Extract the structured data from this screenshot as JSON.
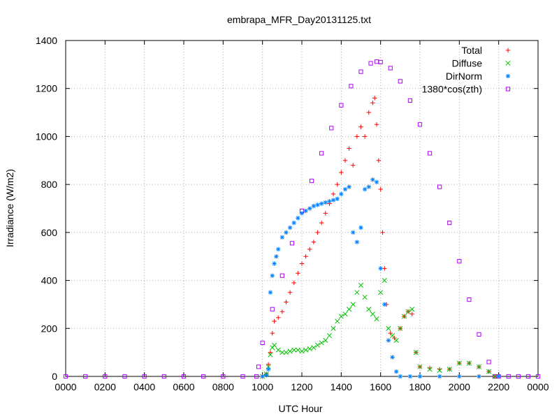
{
  "chart_data": {
    "type": "scatter",
    "title": "embrapa_MFR_Day20131125.txt",
    "xlabel": "UTC Hour",
    "ylabel": "Irradiance (W/m2)",
    "xlim": [
      0,
      2400
    ],
    "ylim": [
      0,
      1400
    ],
    "x_ticks": [
      "0000",
      "0200",
      "0400",
      "0600",
      "0800",
      "1000",
      "1200",
      "1400",
      "1600",
      "1800",
      "2000",
      "2200",
      "0000"
    ],
    "y_ticks": [
      "0",
      "200",
      "400",
      "600",
      "800",
      "1000",
      "1200",
      "1400"
    ],
    "grid": true,
    "legend_position": "top-right",
    "series": [
      {
        "name": "Total",
        "marker": "plus",
        "color": "#ff0000",
        "points": [
          [
            1000,
            0
          ],
          [
            1020,
            10
          ],
          [
            1030,
            50
          ],
          [
            1040,
            100
          ],
          [
            1050,
            180
          ],
          [
            1060,
            230
          ],
          [
            1080,
            245
          ],
          [
            1100,
            270
          ],
          [
            1120,
            310
          ],
          [
            1140,
            350
          ],
          [
            1160,
            390
          ],
          [
            1180,
            430
          ],
          [
            1200,
            470
          ],
          [
            1220,
            500
          ],
          [
            1240,
            530
          ],
          [
            1260,
            560
          ],
          [
            1280,
            600
          ],
          [
            1300,
            640
          ],
          [
            1320,
            680
          ],
          [
            1340,
            720
          ],
          [
            1360,
            760
          ],
          [
            1380,
            800
          ],
          [
            1400,
            850
          ],
          [
            1420,
            900
          ],
          [
            1440,
            950
          ],
          [
            1460,
            880
          ],
          [
            1480,
            1000
          ],
          [
            1500,
            1040
          ],
          [
            1520,
            1000
          ],
          [
            1540,
            1100
          ],
          [
            1560,
            1140
          ],
          [
            1570,
            1160
          ],
          [
            1580,
            1050
          ],
          [
            1590,
            900
          ],
          [
            1600,
            780
          ],
          [
            1610,
            600
          ],
          [
            1620,
            450
          ],
          [
            1630,
            300
          ],
          [
            1650,
            180
          ],
          [
            1670,
            160
          ],
          [
            1700,
            200
          ],
          [
            1720,
            250
          ],
          [
            1740,
            270
          ],
          [
            1760,
            260
          ],
          [
            1780,
            100
          ],
          [
            1800,
            40
          ],
          [
            1850,
            35
          ],
          [
            1900,
            30
          ],
          [
            1950,
            30
          ],
          [
            2000,
            55
          ],
          [
            2050,
            55
          ],
          [
            2100,
            40
          ],
          [
            2150,
            20
          ],
          [
            2180,
            0
          ]
        ]
      },
      {
        "name": "Diffuse",
        "marker": "x",
        "color": "#00c000",
        "points": [
          [
            1000,
            0
          ],
          [
            1020,
            10
          ],
          [
            1030,
            40
          ],
          [
            1040,
            90
          ],
          [
            1050,
            120
          ],
          [
            1060,
            130
          ],
          [
            1080,
            110
          ],
          [
            1100,
            100
          ],
          [
            1120,
            100
          ],
          [
            1140,
            105
          ],
          [
            1160,
            110
          ],
          [
            1180,
            110
          ],
          [
            1200,
            105
          ],
          [
            1220,
            110
          ],
          [
            1240,
            115
          ],
          [
            1260,
            120
          ],
          [
            1280,
            130
          ],
          [
            1300,
            140
          ],
          [
            1320,
            150
          ],
          [
            1340,
            170
          ],
          [
            1360,
            200
          ],
          [
            1380,
            230
          ],
          [
            1400,
            250
          ],
          [
            1420,
            260
          ],
          [
            1440,
            280
          ],
          [
            1460,
            300
          ],
          [
            1480,
            350
          ],
          [
            1500,
            380
          ],
          [
            1520,
            330
          ],
          [
            1540,
            280
          ],
          [
            1560,
            260
          ],
          [
            1580,
            240
          ],
          [
            1600,
            350
          ],
          [
            1620,
            400
          ],
          [
            1640,
            200
          ],
          [
            1660,
            170
          ],
          [
            1680,
            150
          ],
          [
            1700,
            200
          ],
          [
            1720,
            250
          ],
          [
            1740,
            270
          ],
          [
            1760,
            280
          ],
          [
            1780,
            100
          ],
          [
            1800,
            40
          ],
          [
            1850,
            30
          ],
          [
            1900,
            25
          ],
          [
            1950,
            30
          ],
          [
            2000,
            55
          ],
          [
            2050,
            55
          ],
          [
            2100,
            40
          ],
          [
            2150,
            20
          ],
          [
            2180,
            0
          ]
        ]
      },
      {
        "name": "DirNorm",
        "marker": "star",
        "color": "#0080ff",
        "points": [
          [
            1000,
            0
          ],
          [
            1020,
            5
          ],
          [
            1030,
            30
          ],
          [
            1040,
            350
          ],
          [
            1050,
            420
          ],
          [
            1060,
            470
          ],
          [
            1070,
            500
          ],
          [
            1080,
            530
          ],
          [
            1100,
            580
          ],
          [
            1120,
            600
          ],
          [
            1140,
            620
          ],
          [
            1160,
            640
          ],
          [
            1180,
            660
          ],
          [
            1200,
            680
          ],
          [
            1220,
            690
          ],
          [
            1240,
            700
          ],
          [
            1260,
            710
          ],
          [
            1280,
            715
          ],
          [
            1300,
            720
          ],
          [
            1320,
            725
          ],
          [
            1340,
            730
          ],
          [
            1360,
            735
          ],
          [
            1380,
            740
          ],
          [
            1400,
            760
          ],
          [
            1420,
            780
          ],
          [
            1440,
            790
          ],
          [
            1460,
            600
          ],
          [
            1480,
            560
          ],
          [
            1500,
            620
          ],
          [
            1520,
            780
          ],
          [
            1540,
            790
          ],
          [
            1560,
            820
          ],
          [
            1580,
            810
          ],
          [
            1600,
            450
          ],
          [
            1620,
            300
          ],
          [
            1640,
            150
          ],
          [
            1660,
            80
          ],
          [
            1680,
            20
          ],
          [
            1700,
            0
          ],
          [
            1750,
            0
          ],
          [
            1800,
            0
          ],
          [
            1900,
            0
          ],
          [
            2000,
            0
          ],
          [
            2100,
            0
          ],
          [
            2200,
            0
          ]
        ]
      },
      {
        "name": "1380*cos(zth)",
        "marker": "square",
        "color": "#b000ff",
        "points": [
          [
            0,
            0
          ],
          [
            100,
            0
          ],
          [
            200,
            0
          ],
          [
            300,
            0
          ],
          [
            400,
            0
          ],
          [
            500,
            0
          ],
          [
            600,
            0
          ],
          [
            700,
            0
          ],
          [
            800,
            0
          ],
          [
            900,
            0
          ],
          [
            970,
            0
          ],
          [
            980,
            40
          ],
          [
            1000,
            140
          ],
          [
            1050,
            280
          ],
          [
            1100,
            420
          ],
          [
            1150,
            555
          ],
          [
            1200,
            690
          ],
          [
            1250,
            815
          ],
          [
            1300,
            930
          ],
          [
            1350,
            1035
          ],
          [
            1400,
            1130
          ],
          [
            1450,
            1210
          ],
          [
            1500,
            1270
          ],
          [
            1550,
            1305
          ],
          [
            1580,
            1312
          ],
          [
            1600,
            1310
          ],
          [
            1650,
            1285
          ],
          [
            1700,
            1230
          ],
          [
            1750,
            1150
          ],
          [
            1800,
            1050
          ],
          [
            1850,
            930
          ],
          [
            1900,
            790
          ],
          [
            1950,
            640
          ],
          [
            2000,
            480
          ],
          [
            2050,
            320
          ],
          [
            2100,
            175
          ],
          [
            2150,
            60
          ],
          [
            2180,
            0
          ],
          [
            2200,
            0
          ],
          [
            2250,
            0
          ],
          [
            2300,
            0
          ],
          [
            2350,
            0
          ],
          [
            2400,
            0
          ]
        ]
      }
    ]
  }
}
